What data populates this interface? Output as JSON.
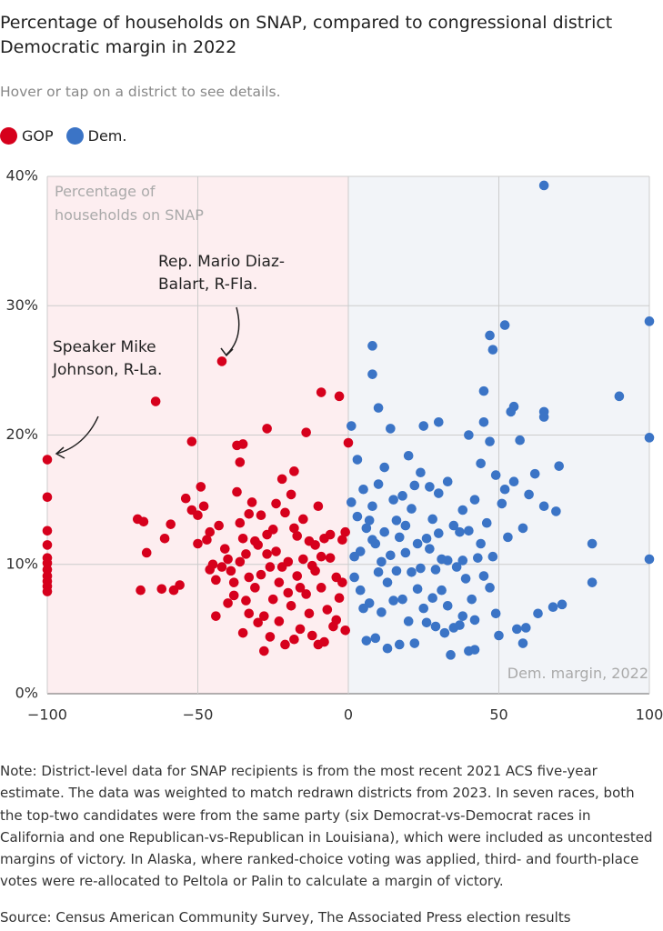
{
  "chart_data": {
    "type": "scatter",
    "title": "Percentage of households on SNAP, compared to congressional district Democratic margin in 2022",
    "subtitle": "Hover or tap on a district to see details.",
    "y_label": "Percentage of households on SNAP",
    "x_label": "Dem. margin, 2022",
    "annotations": [
      "Rep. Mario Diaz-Balart, R-Fla.",
      "Speaker Mike Johnson, R-La."
    ],
    "note": "Note: District-level data for SNAP recipients is from the most recent 2021 ACS five-year estimate. The data was weighted to match redrawn districts from 2023. In seven races, both the top-two candidates were from the same party (six Democrat-vs-Democrat races in California and one Republican-vs-Republican in Louisiana), which were included as uncontested margins of victory. In Alaska, where ranked-choice voting was applied, third- and fourth-place votes were re-allocated to Peltola or Palin to calculate a margin of victory.",
    "source": "Source: Census American Community Survey, The Associated Press election results",
    "xlim": [
      -100,
      100
    ],
    "ylim": [
      0,
      40
    ],
    "xticks": [
      {
        "value": -100,
        "label": "−100"
      },
      {
        "value": -50,
        "label": "−50"
      },
      0,
      50,
      100
    ],
    "yticks": [
      {
        "value": 0,
        "label": "0%"
      },
      {
        "value": 10,
        "label": "10%"
      },
      {
        "value": 20,
        "label": "20%"
      },
      {
        "value": 30,
        "label": "30%"
      },
      {
        "value": 40,
        "label": "40%"
      }
    ],
    "grid": true,
    "series": [
      {
        "name": "GOP",
        "color": "#d6001c",
        "x": [
          -100,
          -100,
          -100,
          -100,
          -100,
          -100,
          -100,
          -100,
          -100,
          -100,
          -100,
          -42,
          -64,
          -9,
          -3,
          -27,
          -14,
          -52,
          -37,
          -35,
          0,
          -36,
          -70,
          -68,
          -67,
          -61,
          -59,
          -58,
          -62,
          -69,
          -56,
          -54,
          -52,
          -50,
          -49,
          -48,
          -47,
          -46,
          -45,
          -44,
          -43,
          -41,
          -40,
          -39,
          -38,
          -37,
          -36,
          -35,
          -34,
          -33,
          -32,
          -31,
          -30,
          -29,
          -28,
          -27,
          -26,
          -25,
          -24,
          -23,
          -22,
          -21,
          -20,
          -19,
          -18,
          -17,
          -16,
          -15,
          -14,
          -13,
          -12,
          -11,
          -10,
          -9,
          -8,
          -7,
          -6,
          -5,
          -4,
          -3,
          -2,
          -1,
          -1,
          -2,
          -28,
          -21,
          -18,
          -35,
          -30,
          -26,
          -10,
          -8,
          -33,
          -40,
          -44,
          -24,
          -19,
          -17,
          -38,
          -42,
          -27,
          -31,
          -15,
          -12,
          -6,
          -4,
          -23,
          -33,
          -46,
          -50,
          -25,
          -29,
          -36,
          -20,
          -13,
          -9,
          -16,
          -22,
          -11,
          -34,
          -18
        ],
        "values": [
          18.1,
          15.2,
          12.6,
          11.5,
          10.5,
          10.1,
          9.6,
          9.1,
          8.7,
          8.3,
          7.9,
          25.7,
          22.6,
          23.3,
          23.0,
          20.5,
          20.2,
          19.5,
          19.2,
          19.3,
          19.4,
          17.9,
          13.5,
          13.3,
          10.9,
          12.0,
          13.1,
          8.0,
          8.1,
          8.0,
          8.4,
          15.1,
          14.2,
          13.8,
          16.0,
          14.5,
          11.9,
          12.5,
          10.0,
          8.8,
          13.0,
          11.2,
          10.4,
          9.5,
          7.6,
          15.6,
          13.2,
          12.0,
          10.8,
          9.0,
          14.8,
          8.2,
          11.5,
          13.8,
          6.0,
          12.3,
          9.8,
          7.3,
          11.0,
          8.6,
          16.6,
          14.0,
          10.2,
          6.8,
          12.8,
          9.1,
          5.0,
          13.5,
          7.7,
          11.8,
          4.5,
          9.5,
          14.5,
          8.2,
          12.0,
          6.5,
          10.5,
          5.2,
          9.0,
          7.4,
          11.9,
          4.9,
          12.5,
          8.6,
          3.3,
          3.8,
          4.2,
          4.7,
          5.5,
          4.4,
          3.8,
          4.0,
          6.2,
          7.0,
          6.0,
          14.7,
          15.4,
          12.2,
          8.6,
          9.8,
          10.8,
          11.8,
          10.4,
          9.9,
          12.3,
          5.7,
          5.6,
          13.9,
          9.6,
          11.6,
          12.7,
          9.2,
          10.2,
          7.8,
          6.2,
          10.6,
          8.2,
          9.8,
          11.5,
          7.2,
          17.2
        ]
      },
      {
        "name": "Dem.",
        "color": "#3b74c6",
        "x": [
          65,
          100,
          52,
          90,
          100,
          100,
          81,
          81,
          71,
          68,
          59,
          63,
          56,
          58,
          47,
          48,
          45,
          55,
          54,
          65,
          65,
          8,
          8,
          10,
          14,
          1,
          25,
          30,
          40,
          45,
          47,
          57,
          70,
          62,
          69,
          65,
          58,
          60,
          52,
          51,
          55,
          49,
          44,
          42,
          40,
          38,
          35,
          33,
          30,
          28,
          26,
          24,
          22,
          20,
          18,
          16,
          14,
          12,
          10,
          8,
          6,
          4,
          2,
          1,
          3,
          5,
          7,
          9,
          11,
          13,
          15,
          17,
          19,
          21,
          23,
          25,
          27,
          29,
          31,
          33,
          35,
          37,
          39,
          41,
          43,
          45,
          47,
          49,
          26,
          22,
          17,
          13,
          9,
          6,
          34,
          40,
          42,
          50,
          37,
          32,
          29,
          20,
          11,
          7,
          4,
          2,
          18,
          24,
          28,
          36,
          30,
          38,
          44,
          46,
          53,
          48,
          33,
          21,
          15,
          12,
          19,
          27,
          42,
          38,
          10,
          5,
          23,
          31,
          16,
          8,
          3
        ],
        "values": [
          39.3,
          28.8,
          28.5,
          23.0,
          19.8,
          10.4,
          11.6,
          8.6,
          6.9,
          6.7,
          5.1,
          6.2,
          5.0,
          3.9,
          27.7,
          26.6,
          23.4,
          22.2,
          21.8,
          21.8,
          21.4,
          26.9,
          24.7,
          22.1,
          20.5,
          20.7,
          20.7,
          21.0,
          20.0,
          21.0,
          19.5,
          19.6,
          17.6,
          17.0,
          14.1,
          14.5,
          12.8,
          15.4,
          15.8,
          14.7,
          16.4,
          16.9,
          17.8,
          15.0,
          12.6,
          10.3,
          13.0,
          10.3,
          15.5,
          13.5,
          12.0,
          17.1,
          16.1,
          18.4,
          15.3,
          13.4,
          10.7,
          17.5,
          16.2,
          14.5,
          12.8,
          11.0,
          9.0,
          14.8,
          18.1,
          15.8,
          13.4,
          11.6,
          10.2,
          8.6,
          7.2,
          12.1,
          10.9,
          9.4,
          8.1,
          6.6,
          11.2,
          9.6,
          8.0,
          6.8,
          5.1,
          12.5,
          8.9,
          7.3,
          10.5,
          9.1,
          8.2,
          6.2,
          5.5,
          3.9,
          3.8,
          3.5,
          4.3,
          4.1,
          3.0,
          3.3,
          3.4,
          4.5,
          5.3,
          4.7,
          5.2,
          5.6,
          6.3,
          7.0,
          8.0,
          10.6,
          7.3,
          9.7,
          7.4,
          9.8,
          12.4,
          14.2,
          11.6,
          13.2,
          12.1,
          10.6,
          16.4,
          14.3,
          15.0,
          12.5,
          13.0,
          16.0,
          5.7,
          6.0,
          9.4,
          6.6,
          11.6,
          10.4,
          9.5,
          11.9,
          13.7
        ]
      }
    ]
  }
}
